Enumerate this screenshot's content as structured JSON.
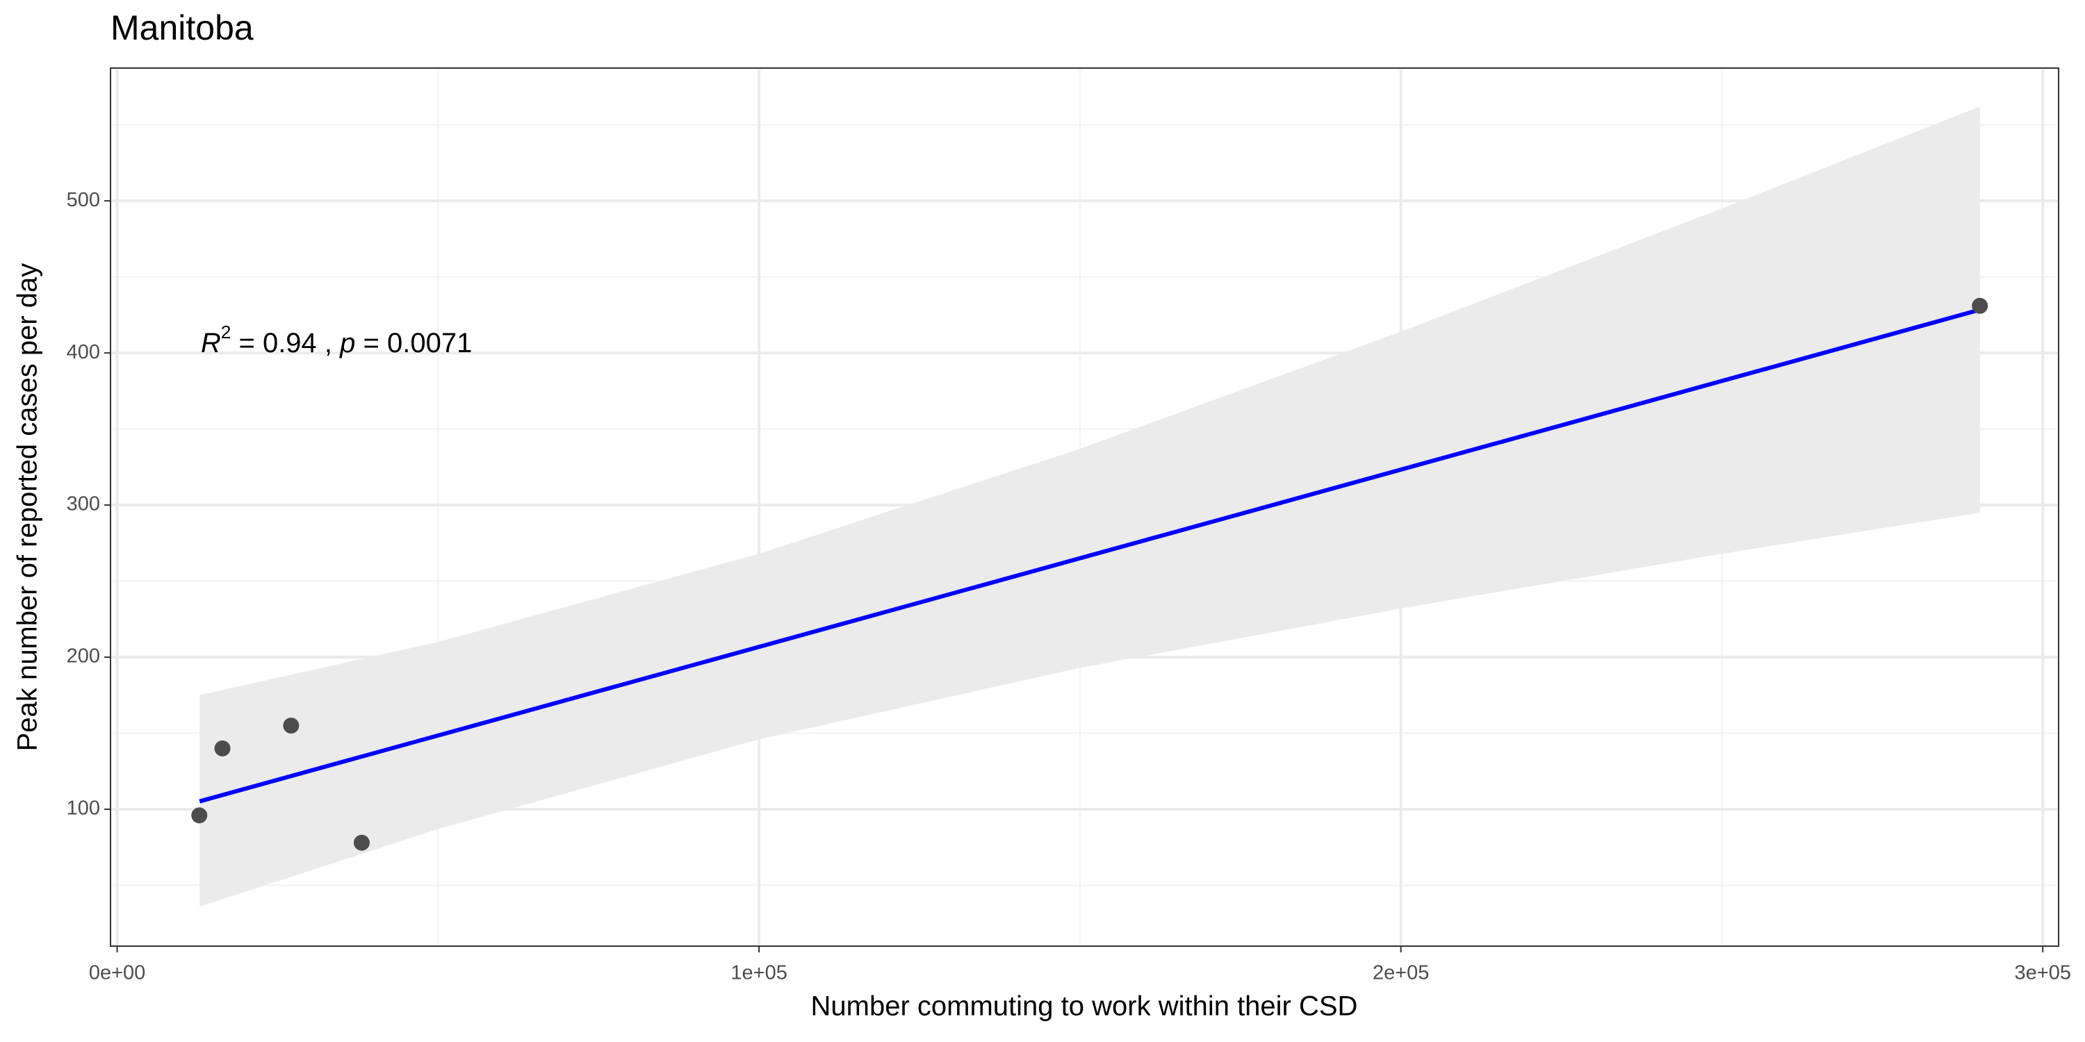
{
  "chart_data": {
    "type": "scatter",
    "title": "Manitoba",
    "x_label": "Number commuting to work within their CSD",
    "y_label": "Peak number of reported cases per day",
    "x": [
      12800,
      16400,
      27100,
      38100,
      290200
    ],
    "values": [
      96,
      140,
      155,
      78,
      431
    ],
    "color": "#4d4d4d",
    "fit": {
      "x": [
        12845,
        290200
      ],
      "values": [
        105.2,
        428.4
      ],
      "color": "#0000ff"
    },
    "band": {
      "x": [
        12845,
        50000,
        100000,
        150000,
        200000,
        250000,
        290200
      ],
      "lower": [
        36,
        87,
        146,
        193,
        232,
        268,
        295
      ],
      "upper": [
        175,
        210,
        268,
        337,
        414,
        495,
        562
      ],
      "color": "#ebebeb"
    },
    "annotation": {
      "r_symbol": "R",
      "r_exponent": "2",
      "r_text": " = 0.94 , ",
      "p_symbol": "p",
      "p_text": " = 0.0071"
    },
    "xlim": [
      -1036,
      302465
    ],
    "ylim": [
      10,
      587.3
    ],
    "xticks": [
      {
        "value": 0,
        "label": "0e+00"
      },
      {
        "value": 100000,
        "label": "1e+05"
      },
      {
        "value": 200000,
        "label": "2e+05"
      },
      {
        "value": 300000,
        "label": "3e+05"
      }
    ],
    "yticks": [
      100,
      200,
      300,
      400,
      500
    ],
    "grid": true
  }
}
